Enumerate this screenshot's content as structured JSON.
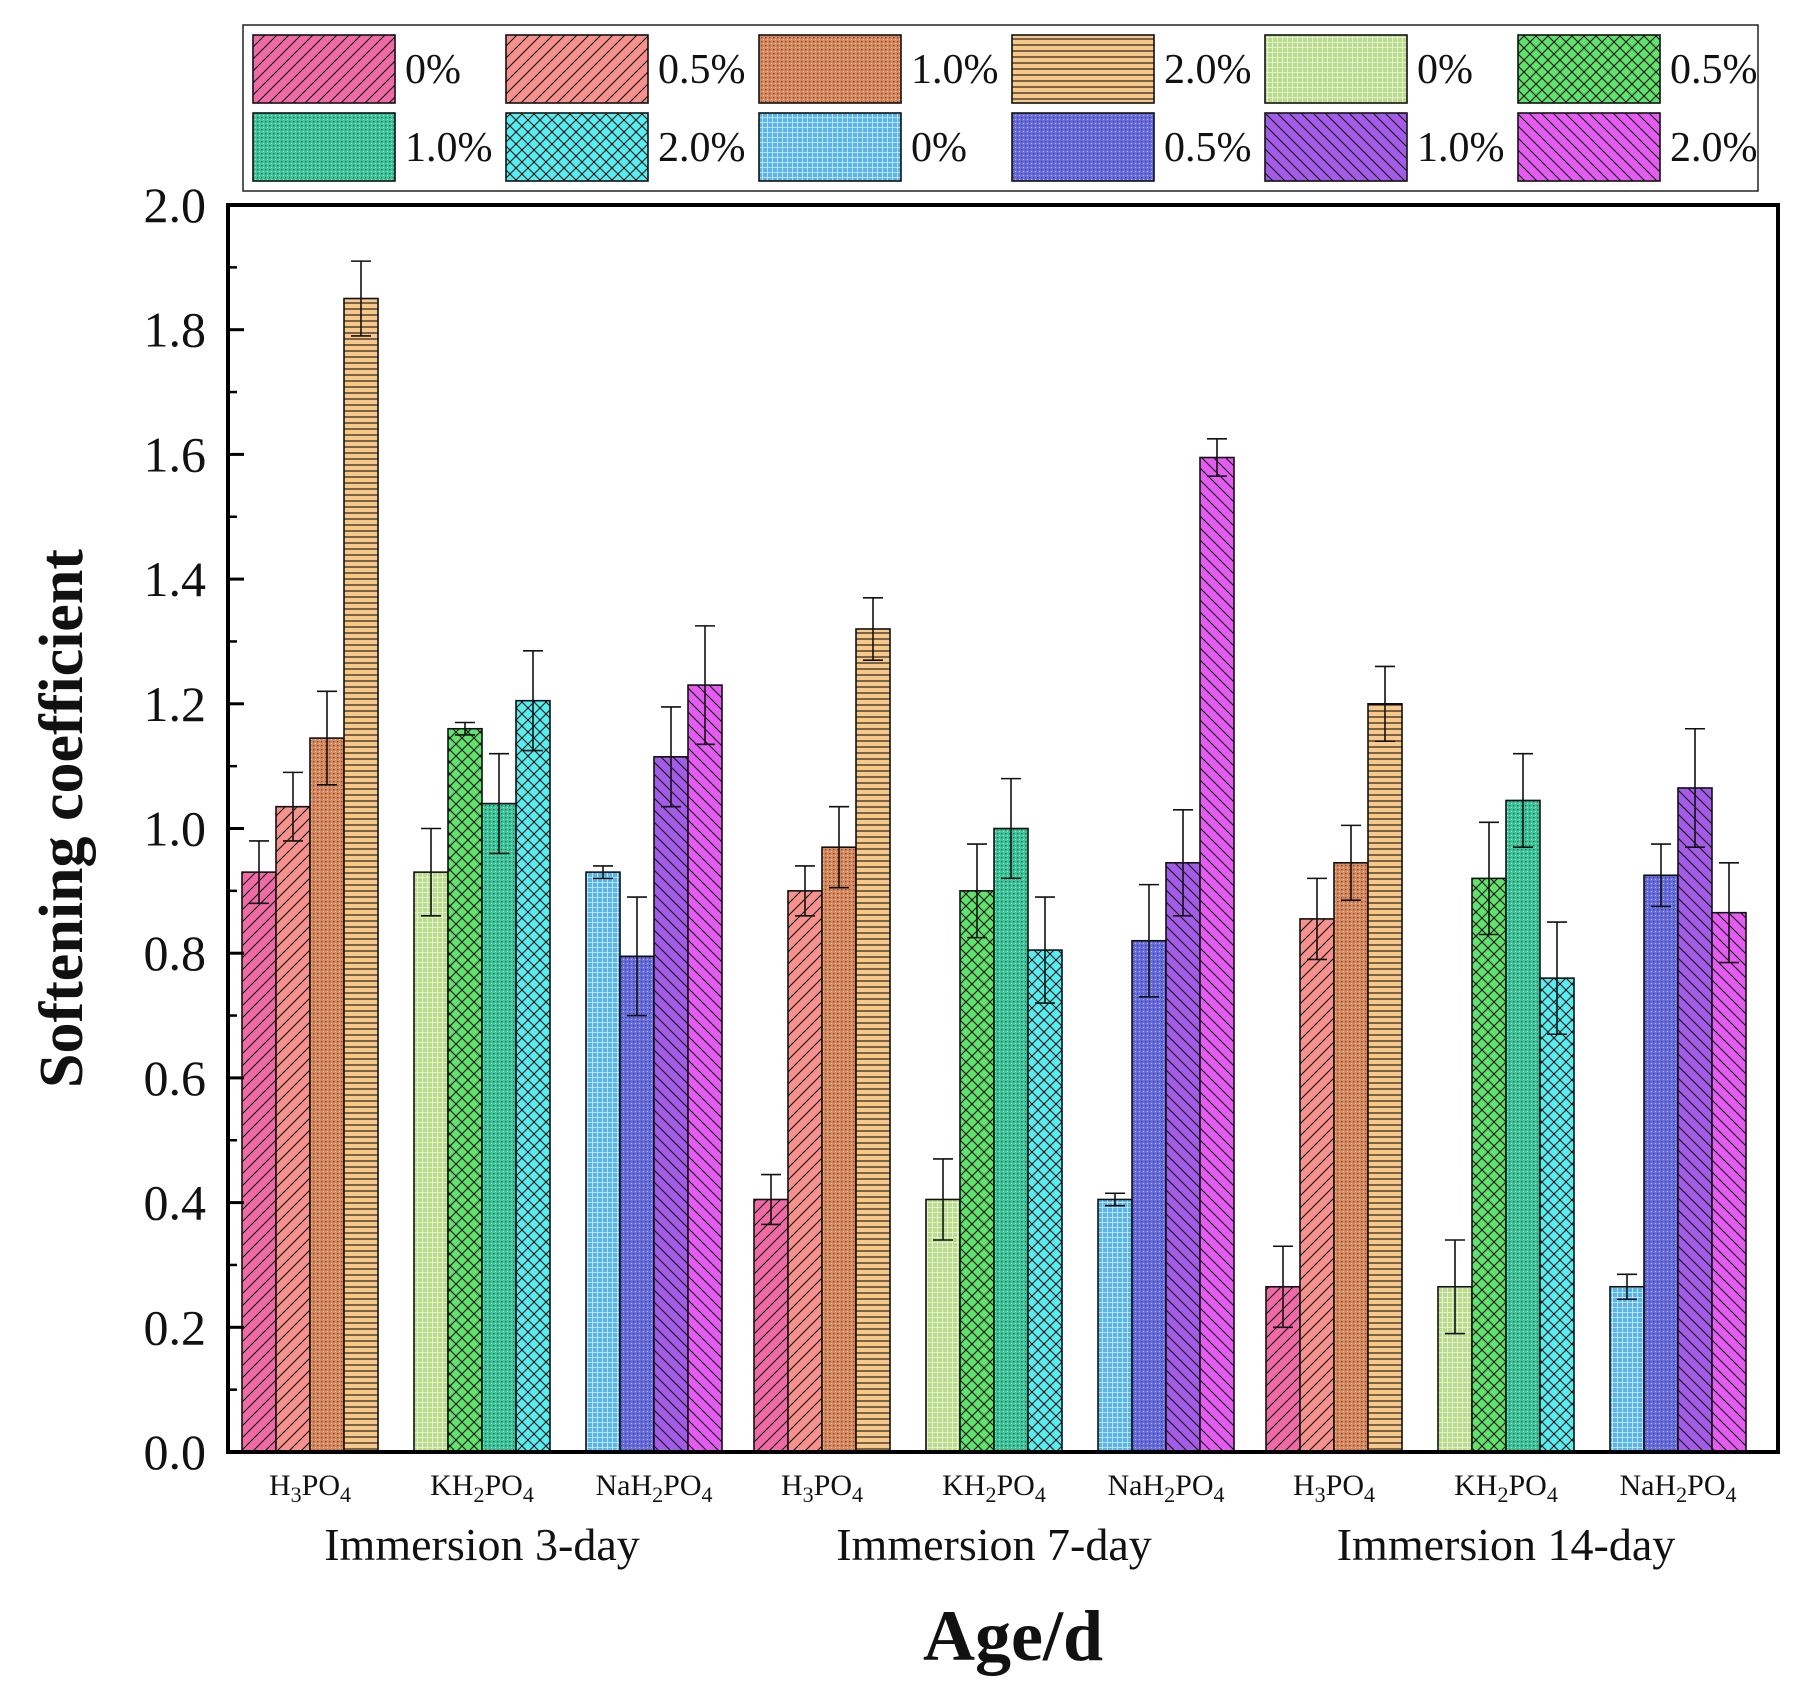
{
  "chart_data": {
    "type": "bar",
    "title": "",
    "xlabel": "Age/d",
    "ylabel": "Softening coefficient",
    "ylim": [
      0,
      2.0
    ],
    "yticks": [
      "0.0",
      "0.2",
      "0.4",
      "0.6",
      "0.8",
      "1.0",
      "1.2",
      "1.4",
      "1.6",
      "1.8",
      "2.0"
    ],
    "legend_position": "top",
    "legend_labels": [
      "0%",
      "0.5%",
      "1.0%",
      "2.0%",
      "0%",
      "0.5%",
      "1.0%",
      "2.0%",
      "0%",
      "0.5%",
      "1.0%",
      "2.0%"
    ],
    "series": [
      {
        "name": "H3PO4 0%",
        "color": "#f06aa6",
        "pattern": "diag-fwd"
      },
      {
        "name": "H3PO4 0.5%",
        "color": "#f6918c",
        "pattern": "diag-fwd"
      },
      {
        "name": "H3PO4 1.0%",
        "color": "#d9895e",
        "pattern": "dots"
      },
      {
        "name": "H3PO4 2.0%",
        "color": "#f8c98a",
        "pattern": "horiz"
      },
      {
        "name": "KH2PO4 0%",
        "color": "#b8dc8a",
        "pattern": "grid"
      },
      {
        "name": "KH2PO4 0.5%",
        "color": "#5fe36c",
        "pattern": "cross"
      },
      {
        "name": "KH2PO4 1.0%",
        "color": "#3fc59a",
        "pattern": "dots"
      },
      {
        "name": "KH2PO4 2.0%",
        "color": "#56eef0",
        "pattern": "cross"
      },
      {
        "name": "NaH2PO4 0%",
        "color": "#58b5e8",
        "pattern": "grid"
      },
      {
        "name": "NaH2PO4 0.5%",
        "color": "#6a6ee0",
        "pattern": "dots"
      },
      {
        "name": "NaH2PO4 1.0%",
        "color": "#a45ce8",
        "pattern": "diag-back"
      },
      {
        "name": "NaH2PO4 2.0%",
        "color": "#e45cf2",
        "pattern": "diag-back"
      }
    ],
    "groups": [
      {
        "period": "Immersion 3-day",
        "clusters": [
          {
            "label": "H3PO4",
            "series": [
              0,
              1,
              2,
              3
            ],
            "values": [
              0.93,
              1.035,
              1.145,
              1.85
            ],
            "errors": [
              0.05,
              0.055,
              0.075,
              0.06
            ]
          },
          {
            "label": "KH2PO4",
            "series": [
              4,
              5,
              6,
              7
            ],
            "values": [
              0.93,
              1.16,
              1.04,
              1.205
            ],
            "errors": [
              0.07,
              0.01,
              0.08,
              0.08
            ]
          },
          {
            "label": "NaH2PO4",
            "series": [
              8,
              9,
              10,
              11
            ],
            "values": [
              0.93,
              0.795,
              1.115,
              1.23
            ],
            "errors": [
              0.01,
              0.095,
              0.08,
              0.095
            ]
          }
        ]
      },
      {
        "period": "Immersion 7-day",
        "clusters": [
          {
            "label": "H3PO4",
            "series": [
              0,
              1,
              2,
              3
            ],
            "values": [
              0.405,
              0.9,
              0.97,
              1.32
            ],
            "errors": [
              0.04,
              0.04,
              0.065,
              0.05
            ]
          },
          {
            "label": "KH2PO4",
            "series": [
              4,
              5,
              6,
              7
            ],
            "values": [
              0.405,
              0.9,
              1.0,
              0.805
            ],
            "errors": [
              0.065,
              0.075,
              0.08,
              0.085
            ]
          },
          {
            "label": "NaH2PO4",
            "series": [
              8,
              9,
              10,
              11
            ],
            "values": [
              0.405,
              0.82,
              0.945,
              1.595
            ],
            "errors": [
              0.01,
              0.09,
              0.085,
              0.03
            ]
          }
        ]
      },
      {
        "period": "Immersion 14-day",
        "clusters": [
          {
            "label": "H3PO4",
            "series": [
              0,
              1,
              2,
              3
            ],
            "values": [
              0.265,
              0.855,
              0.945,
              1.2
            ],
            "errors": [
              0.065,
              0.065,
              0.06,
              0.06
            ]
          },
          {
            "label": "KH2PO4",
            "series": [
              4,
              5,
              6,
              7
            ],
            "values": [
              0.265,
              0.92,
              1.045,
              0.76
            ],
            "errors": [
              0.075,
              0.09,
              0.075,
              0.09
            ]
          },
          {
            "label": "NaH2PO4",
            "series": [
              8,
              9,
              10,
              11
            ],
            "values": [
              0.265,
              0.925,
              1.065,
              0.865
            ],
            "errors": [
              0.02,
              0.05,
              0.095,
              0.08
            ]
          }
        ]
      }
    ],
    "cluster_label_text": {
      "H3PO4": {
        "a": "H",
        "s1": "3",
        "b": "PO",
        "s2": "4"
      },
      "KH2PO4": {
        "a": "KH",
        "s1": "2",
        "b": "PO",
        "s2": "4"
      },
      "NaH2PO4": {
        "a": "NaH",
        "s1": "2",
        "b": "PO",
        "s2": "4"
      }
    }
  }
}
